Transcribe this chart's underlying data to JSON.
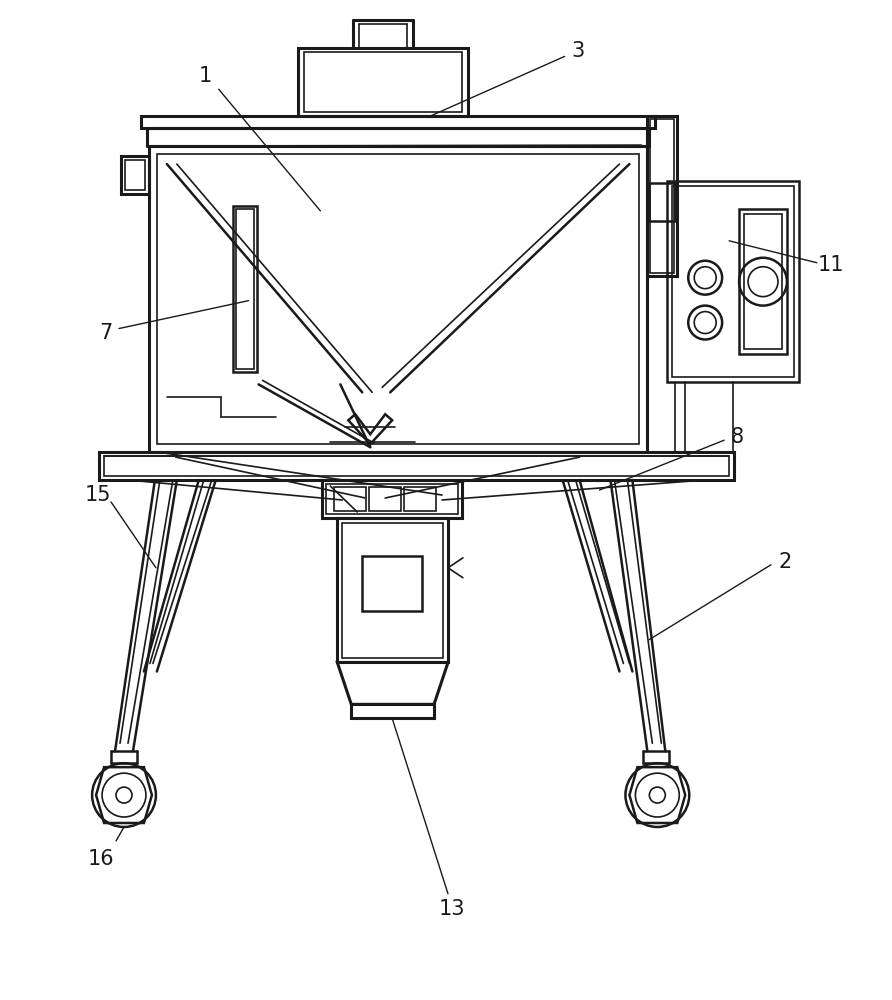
{
  "bg_color": "#ffffff",
  "lc": "#1a1a1a",
  "lw_thin": 1.2,
  "lw_med": 1.8,
  "lw_thick": 2.2
}
